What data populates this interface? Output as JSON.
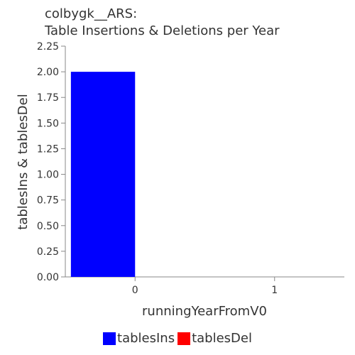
{
  "chart_data": {
    "type": "bar",
    "title_lines": [
      "colbygk__ARS:",
      "Table Insertions & Deletions per Year"
    ],
    "xlabel": "runningYearFromV0",
    "ylabel": "tablesIns & tablesDel",
    "categories": [
      "0",
      "1"
    ],
    "series": [
      {
        "name": "tablesIns",
        "color": "#0000ff",
        "values": [
          2,
          0
        ]
      },
      {
        "name": "tablesDel",
        "color": "#ff0000",
        "values": [
          0,
          0
        ]
      }
    ],
    "ylim": [
      0,
      2.25
    ],
    "yticks": [
      "0.00",
      "0.25",
      "0.50",
      "0.75",
      "1.00",
      "1.25",
      "1.50",
      "1.75",
      "2.00",
      "2.25"
    ],
    "grid": false,
    "legend_position": "bottom"
  }
}
